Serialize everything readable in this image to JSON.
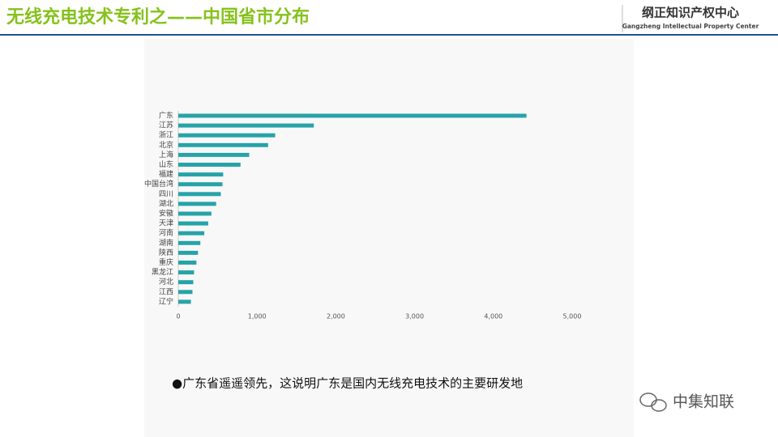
{
  "header": {
    "title": "无线充电技术专利之——中国省市分布",
    "logo_name": "纲正知识产权中心",
    "logo_subtitle": "Gangzheng Intellectual Property Center"
  },
  "chart_data": {
    "type": "hbar",
    "categories": [
      "广东",
      "江苏",
      "浙江",
      "北京",
      "上海",
      "山东",
      "福建",
      "中国台湾",
      "四川",
      "湖北",
      "安徽",
      "天津",
      "河南",
      "湖南",
      "陕西",
      "重庆",
      "黑龙江",
      "河北",
      "江西",
      "辽宁"
    ],
    "values": [
      4420,
      1720,
      1230,
      1140,
      900,
      790,
      570,
      560,
      540,
      480,
      420,
      380,
      330,
      280,
      250,
      230,
      200,
      190,
      180,
      160
    ],
    "color": "#27a3a8",
    "xlim": [
      0,
      5000
    ],
    "xticks": [
      0,
      {
        "value": 1000,
        "label": "1,000"
      },
      {
        "value": 2000,
        "label": "2,000"
      },
      {
        "value": 3000,
        "label": "3,000"
      },
      {
        "value": 4000,
        "label": "4,000"
      },
      {
        "value": 5000,
        "label": "5,000"
      }
    ],
    "grid": false
  },
  "note": "●广东省遥遥领先，这说明广东是国内无线充电技术的主要研发地",
  "watermark": "中集知联"
}
